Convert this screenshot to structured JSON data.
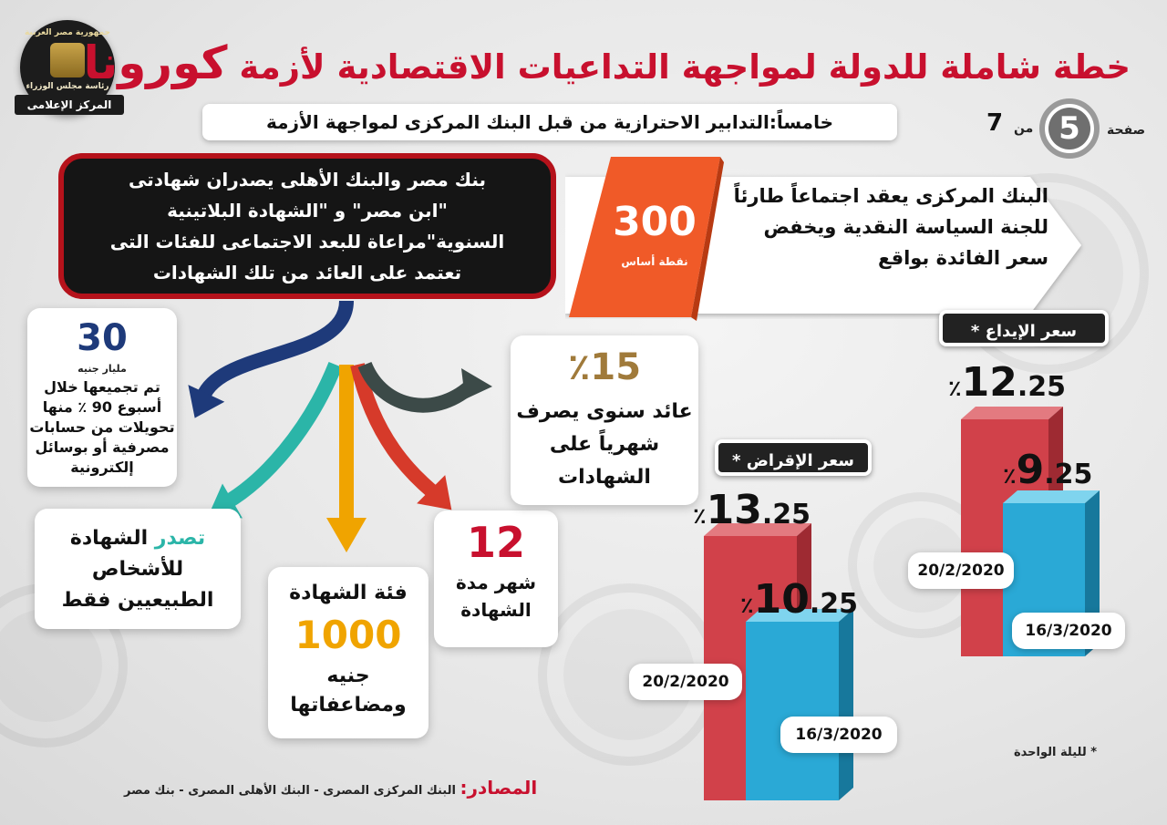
{
  "header": {
    "title_main": "خطة شاملة للدولة لمواجهة التداعيات الاقتصادية لأزمة",
    "title_highlight": "كورونا",
    "subtitle": "خامساً:التدابير الاحترازية من قبل البنك المركزى لمواجهة الأزمة",
    "page_label": "صفحة",
    "page_number": "5",
    "page_of": "من",
    "page_total": "7"
  },
  "logo": {
    "top_text": "جمهورية مصر العربية",
    "mid_text": "رئاسة مجلس الوزراء",
    "ribbon_text": "المركز الإعلامى"
  },
  "black_box": {
    "line1": "بنك مصر والبنك الأهلى يصدران شهادتى",
    "line2": "\"ابن مصر\" و \"الشهادة البلاتينية",
    "line3": "السنوية\"مراعاة للبعد الاجتماعى للفئات التى",
    "line4": "تعتمد على العائد من تلك الشهادات"
  },
  "central_bank": {
    "line1": "البنك المركزى يعقد اجتماعاً طارئاً",
    "line2": "للجنة السياسة النقدية ويخفض",
    "line3": "سعر الفائدة بواقع",
    "cut_value": "300",
    "cut_unit": "نقطة أساس"
  },
  "cards": {
    "collected": {
      "number": "30",
      "unit": "مليار جنيه",
      "line1": "تم تجميعها خلال",
      "line2": "أسبوع 90 ٪ منها",
      "line3": "تحويلات من حسابات",
      "line4": "مصرفية أو بوسائل",
      "line5": "إلكترونية"
    },
    "individuals": {
      "highlight": "تصدر",
      "line1": "الشهادة",
      "line2": "للأشخاص",
      "line3": "الطبيعيين فقط"
    },
    "denomination": {
      "line1": "فئة الشهادة",
      "number": "1000",
      "line2": "جنيه",
      "line3": "ومضاعفاتها"
    },
    "duration": {
      "number": "12",
      "line1": "شهر مدة",
      "line2": "الشهادة"
    },
    "yield": {
      "number": "15",
      "symbol": "٪",
      "line1": "عائد سنوى يصرف",
      "line2": "شهرياً على",
      "line3": "الشهادات"
    }
  },
  "rates": {
    "deposit_label": "سعر الإيداع",
    "lending_label": "سعر الإقراض",
    "star": "*",
    "deposit_old": {
      "int": "12",
      "dec": ".25",
      "sym": "٪",
      "date": "20/2/2020"
    },
    "deposit_new": {
      "int": "9",
      "dec": ".25",
      "sym": "٪",
      "date": "16/3/2020"
    },
    "lending_old": {
      "int": "13",
      "dec": ".25",
      "sym": "٪",
      "date": "20/2/2020"
    },
    "lending_new": {
      "int": "10",
      "dec": ".25",
      "sym": "٪",
      "date": "16/3/2020"
    }
  },
  "footnote": "* لليلة الواحدة",
  "sources": {
    "label": "المصادر:",
    "text": "البنك المركزى المصرى - البنك الأهلى المصرى - بنك مصر"
  },
  "colors": {
    "red": "#c8102e",
    "orange": "#f05a28",
    "teal": "#2bb5a8",
    "blue_bar": "#2aa9d6",
    "red_bar": "#d1414a",
    "gold": "#f0a400",
    "brown": "#a07a3a",
    "navy": "#1e3a7a"
  }
}
